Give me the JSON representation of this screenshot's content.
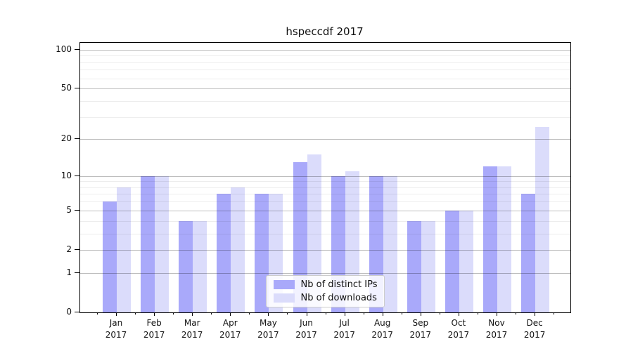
{
  "title": "hspeccdf 2017",
  "chart_data": {
    "type": "bar",
    "title": "hspeccdf 2017",
    "x_months": [
      "Jan",
      "Feb",
      "Mar",
      "Apr",
      "May",
      "Jun",
      "Jul",
      "Aug",
      "Sep",
      "Oct",
      "Nov",
      "Dec"
    ],
    "x_year": "2017",
    "series": [
      {
        "name": "Nb of distinct IPs",
        "color": "#a9a9fa",
        "values": [
          6,
          10,
          4,
          7,
          7,
          13,
          10,
          10,
          4,
          5,
          12,
          7
        ]
      },
      {
        "name": "Nb of downloads",
        "color": "#dbdcfb",
        "values": [
          8,
          10,
          4,
          8,
          7,
          15,
          11,
          10,
          4,
          5,
          12,
          25
        ]
      }
    ],
    "y_scale": "log1p",
    "y_major_ticks": [
      0,
      1,
      2,
      5,
      10,
      20,
      50,
      100
    ],
    "y_minor_ticks": [
      3,
      4,
      6,
      7,
      8,
      9,
      30,
      40,
      60,
      70,
      80,
      90
    ],
    "ylim": [
      0,
      113
    ],
    "grid": true,
    "legend_position": "lower center"
  },
  "colors": {
    "bar_distinct_ips": "#a9a9fa",
    "bar_downloads": "#dbdcfb",
    "grid_major": "#c2c2c2",
    "grid_minor": "#ededed",
    "spine": "#000000",
    "text": "#111111",
    "legend_border": "#cccccc"
  }
}
